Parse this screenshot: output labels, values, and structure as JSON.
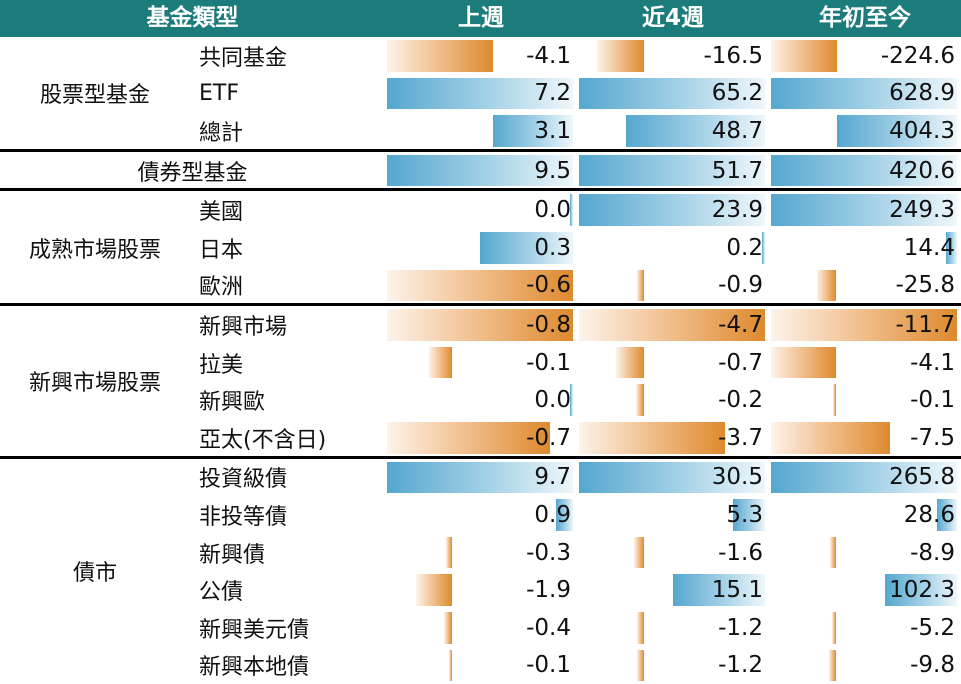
{
  "header": {
    "type": "基金類型",
    "last_week": "上週",
    "last_4_weeks": "近4週",
    "ytd": "年初至今"
  },
  "groups": [
    {
      "label": "股票型基金",
      "rows": [
        {
          "label": "共同基金",
          "values": [
            "-4.1",
            "-16.5",
            "-224.6"
          ]
        },
        {
          "label": "ETF",
          "values": [
            "7.2",
            "65.2",
            "628.9"
          ]
        },
        {
          "label": "總計",
          "values": [
            "3.1",
            "48.7",
            "404.3"
          ]
        }
      ]
    },
    {
      "label": "債券型基金",
      "rows": [
        {
          "label": "",
          "values": [
            "9.5",
            "51.7",
            "420.6"
          ]
        }
      ]
    },
    {
      "label": "成熟市場股票",
      "rows": [
        {
          "label": "美國",
          "values": [
            "0.0",
            "23.9",
            "249.3"
          ]
        },
        {
          "label": "日本",
          "values": [
            "0.3",
            "0.2",
            "14.4"
          ]
        },
        {
          "label": "歐洲",
          "values": [
            "-0.6",
            "-0.9",
            "-25.8"
          ]
        }
      ]
    },
    {
      "label": "新興市場股票",
      "rows": [
        {
          "label": "新興市場",
          "values": [
            "-0.8",
            "-4.7",
            "-11.7"
          ]
        },
        {
          "label": "拉美",
          "values": [
            "-0.1",
            "-0.7",
            "-4.1"
          ]
        },
        {
          "label": "新興歐",
          "values": [
            "0.0",
            "-0.2",
            "-0.1"
          ]
        },
        {
          "label": "亞太(不含日)",
          "values": [
            "-0.7",
            "-3.7",
            "-7.5"
          ]
        }
      ]
    },
    {
      "label": "債市",
      "rows": [
        {
          "label": "投資級債",
          "values": [
            "9.7",
            "30.5",
            "265.8"
          ]
        },
        {
          "label": "非投等債",
          "values": [
            "0.9",
            "5.3",
            "28.6"
          ]
        },
        {
          "label": "新興債",
          "values": [
            "-0.3",
            "-1.6",
            "-8.9"
          ]
        },
        {
          "label": "公債",
          "values": [
            "-1.9",
            "15.1",
            "102.3"
          ]
        },
        {
          "label": "新興美元債",
          "values": [
            "-0.4",
            "-1.2",
            "-5.2"
          ]
        },
        {
          "label": "新興本地債",
          "values": [
            "-0.1",
            "-1.2",
            "-9.8"
          ]
        }
      ]
    }
  ],
  "colors": {
    "header_bg": "#1c7b7b",
    "header_text": "#ffffff",
    "positive_bar": "#55a7cf",
    "negative_bar": "#dd8a2e"
  }
}
